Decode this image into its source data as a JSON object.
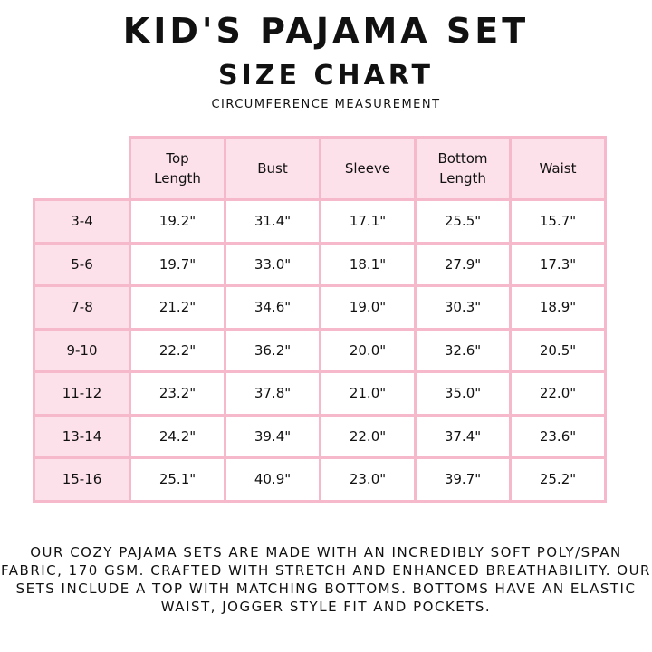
{
  "title": "KID'S PAJAMA SET",
  "subtitle": "SIZE CHART",
  "note": "CIRCUMFERENCE MEASUREMENT",
  "columns": [
    "Top Length",
    "Bust",
    "Sleeve",
    "Bottom Length",
    "Waist"
  ],
  "rows": [
    {
      "size": "3-4",
      "values": [
        "19.2\"",
        "31.4\"",
        "17.1\"",
        "25.5\"",
        "15.7\""
      ]
    },
    {
      "size": "5-6",
      "values": [
        "19.7\"",
        "33.0\"",
        "18.1\"",
        "27.9\"",
        "17.3\""
      ]
    },
    {
      "size": "7-8",
      "values": [
        "21.2\"",
        "34.6\"",
        "19.0\"",
        "30.3\"",
        "18.9\""
      ]
    },
    {
      "size": "9-10",
      "values": [
        "22.2\"",
        "36.2\"",
        "20.0\"",
        "32.6\"",
        "20.5\""
      ]
    },
    {
      "size": "11-12",
      "values": [
        "23.2\"",
        "37.8\"",
        "21.0\"",
        "35.0\"",
        "22.0\""
      ]
    },
    {
      "size": "13-14",
      "values": [
        "24.2\"",
        "39.4\"",
        "22.0\"",
        "37.4\"",
        "23.6\""
      ]
    },
    {
      "size": "15-16",
      "values": [
        "25.1\"",
        "40.9\"",
        "23.0\"",
        "39.7\"",
        "25.2\""
      ]
    }
  ],
  "description": "OUR COZY PAJAMA SETS ARE MADE WITH AN INCREDIBLY SOFT POLY/SPAN FABRIC, 170 GSM. CRAFTED WITH STRETCH AND ENHANCED BREATHABILITY. OUR SETS INCLUDE A TOP WITH MATCHING BOTTOMS. BOTTOMS HAVE AN ELASTIC WAIST, JOGGER STYLE FIT AND POCKETS.",
  "colors": {
    "border": "#f6b9cb",
    "header_bg": "#fde1ea"
  }
}
